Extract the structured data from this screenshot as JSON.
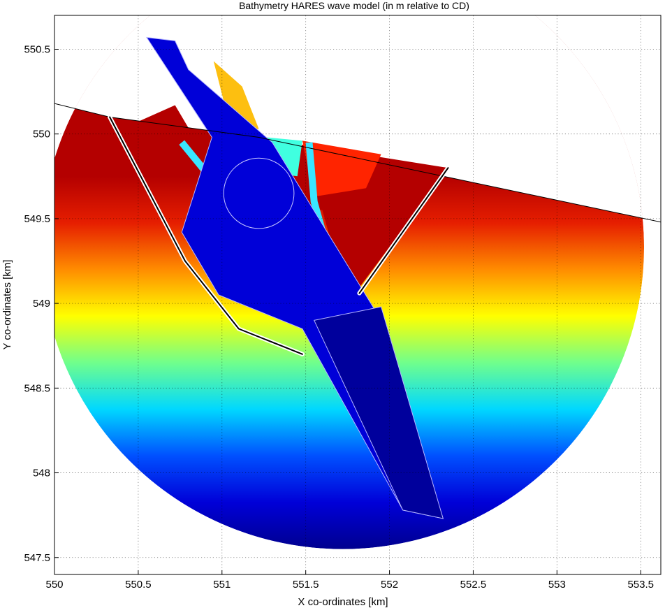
{
  "chart_data": {
    "type": "heatmap",
    "title": "Bathymetry HARES wave model (in m relative to CD)",
    "xlabel": "X co-ordinates [km]",
    "ylabel": "Y co-ordinates [km]",
    "xlim": [
      550,
      553.62
    ],
    "ylim": [
      547.4,
      550.7
    ],
    "x_ticks": [
      550,
      550.5,
      551,
      551.5,
      552,
      552.5,
      553,
      553.5
    ],
    "x_tick_labels": [
      "550",
      "550.5",
      "551",
      "551.5",
      "552",
      "552.5",
      "553",
      "553.5"
    ],
    "y_ticks": [
      547.5,
      548,
      548.5,
      549,
      549.5,
      550,
      550.5
    ],
    "y_tick_labels": [
      "547.5",
      "548",
      "548.5",
      "549",
      "549.5",
      "550",
      "550.5"
    ],
    "grid": true,
    "colormap": "jet",
    "domain_circle": {
      "center": [
        551.72,
        549.33
      ],
      "radius": 1.8
    },
    "shoreline": [
      [
        550.0,
        550.18
      ],
      [
        550.33,
        550.1
      ],
      [
        551.22,
        549.98
      ],
      [
        553.62,
        549.48
      ]
    ],
    "navigation_channel": {
      "polygon": [
        [
          550.55,
          550.57
        ],
        [
          550.72,
          550.55
        ],
        [
          550.8,
          550.38
        ],
        [
          551.3,
          549.95
        ],
        [
          551.92,
          548.95
        ],
        [
          552.32,
          547.73
        ],
        [
          552.08,
          547.78
        ],
        [
          551.48,
          548.85
        ],
        [
          550.98,
          549.05
        ],
        [
          550.76,
          549.42
        ],
        [
          550.94,
          549.98
        ],
        [
          550.55,
          550.57
        ]
      ],
      "color": "#0000d8"
    },
    "outer_channel": {
      "polygon": [
        [
          551.55,
          548.9
        ],
        [
          551.95,
          548.98
        ],
        [
          552.32,
          547.73
        ],
        [
          552.08,
          547.78
        ]
      ],
      "color": "#00009c"
    },
    "turning_circle": {
      "center": [
        551.22,
        549.65
      ],
      "radius": 0.21
    },
    "breakwaters": [
      {
        "name": "west",
        "points": [
          [
            550.33,
            550.1
          ],
          [
            550.78,
            549.25
          ],
          [
            551.1,
            548.85
          ],
          [
            551.48,
            548.7
          ]
        ]
      },
      {
        "name": "east",
        "points": [
          [
            552.35,
            549.8
          ],
          [
            551.82,
            549.06
          ]
        ]
      }
    ],
    "depth_colors": [
      {
        "offset": 0.0,
        "color": "#00008f"
      },
      {
        "offset": 0.12,
        "color": "#0000d8"
      },
      {
        "offset": 0.3,
        "color": "#0050ff"
      },
      {
        "offset": 0.48,
        "color": "#00d8ff"
      },
      {
        "offset": 0.6,
        "color": "#70ff8c"
      },
      {
        "offset": 0.7,
        "color": "#ffff00"
      },
      {
        "offset": 0.8,
        "color": "#ff8c00"
      },
      {
        "offset": 0.9,
        "color": "#e61e00"
      },
      {
        "offset": 1.0,
        "color": "#b40000"
      }
    ],
    "deep_color": "#00009c",
    "shallow_color": "#b40000",
    "reclaim_color": "#fdbf10",
    "basin_color": "#ff2400",
    "turning_color": "#40ffe0"
  }
}
